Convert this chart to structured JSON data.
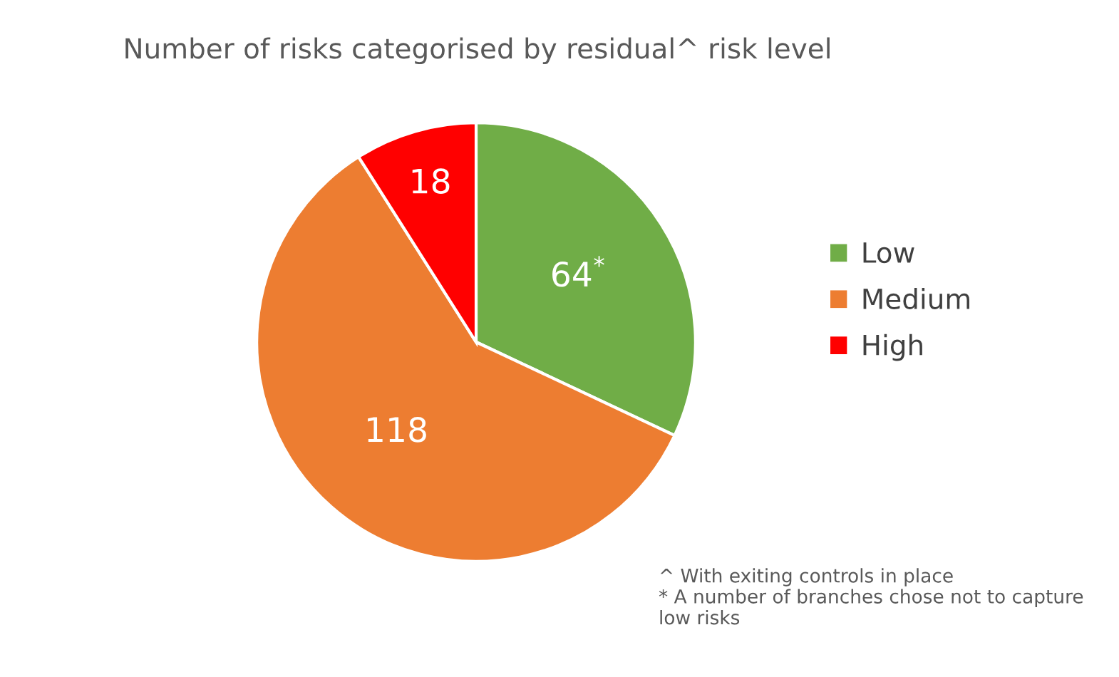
{
  "chart_data": {
    "type": "pie",
    "title": "Number of risks categorised by residual^ risk level",
    "categories": [
      "Low",
      "Medium",
      "High"
    ],
    "values": [
      64,
      118,
      18
    ],
    "colors": [
      "#70ad47",
      "#ed7d31",
      "#ff0000"
    ],
    "value_labels": [
      "64$^{*}$",
      "118",
      "18"
    ],
    "legend": "right",
    "annotations": [
      "^ With exiting controls in place",
      "* A number of branches chose not to capture low risks"
    ]
  }
}
